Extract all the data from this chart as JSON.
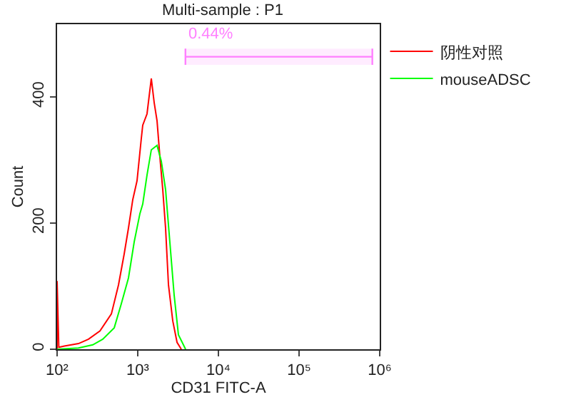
{
  "chart_data": {
    "type": "line",
    "title": "Multi-sample : P1",
    "xlabel": "CD31 FITC-A",
    "ylabel": "Count",
    "log": "x",
    "xlim": [
      100,
      1000000
    ],
    "xticks": [
      {
        "value": 100,
        "label": "10²"
      },
      {
        "value": 1000,
        "label": "10³"
      },
      {
        "value": 10000,
        "label": "10⁴"
      },
      {
        "value": 100000,
        "label": "10⁵"
      },
      {
        "value": 1000000,
        "label": "10⁶"
      }
    ],
    "ylim": [
      0,
      515
    ],
    "yticks": [
      0,
      200,
      400
    ],
    "grid": false,
    "legend": "top right",
    "series": [
      {
        "name": "阴性对照",
        "color": "#ff0000",
        "x": [
          100,
          100,
          105,
          123,
          184,
          245,
          340,
          471,
          577,
          679,
          767,
          867,
          980,
          1107,
          1153,
          1303,
          1472,
          1598,
          1734,
          1881,
          2041,
          2213,
          2404,
          2716,
          3069,
          3467
        ],
        "values": [
          0,
          108,
          3,
          5,
          9,
          16,
          29,
          56,
          102,
          151,
          192,
          237,
          267,
          334,
          355,
          373,
          429,
          391,
          362,
          305,
          253,
          192,
          102,
          45,
          11,
          0
        ]
      },
      {
        "name": "mouseADSC",
        "color": "#00ff00",
        "x": [
          100,
          184,
          277,
          368,
          511,
          625,
          767,
          903,
          1064,
          1153,
          1303,
          1472,
          1734,
          1959,
          2213,
          2500,
          2826,
          3193,
          3919
        ],
        "values": [
          0,
          2,
          7,
          16,
          34,
          72,
          113,
          170,
          215,
          230,
          276,
          316,
          323,
          298,
          253,
          170,
          86,
          23,
          0
        ]
      }
    ],
    "bands": [
      {
        "axis": "x",
        "from": 3900,
        "to": 810000,
        "label": "0.44%",
        "color": "#ff80ff"
      }
    ]
  }
}
